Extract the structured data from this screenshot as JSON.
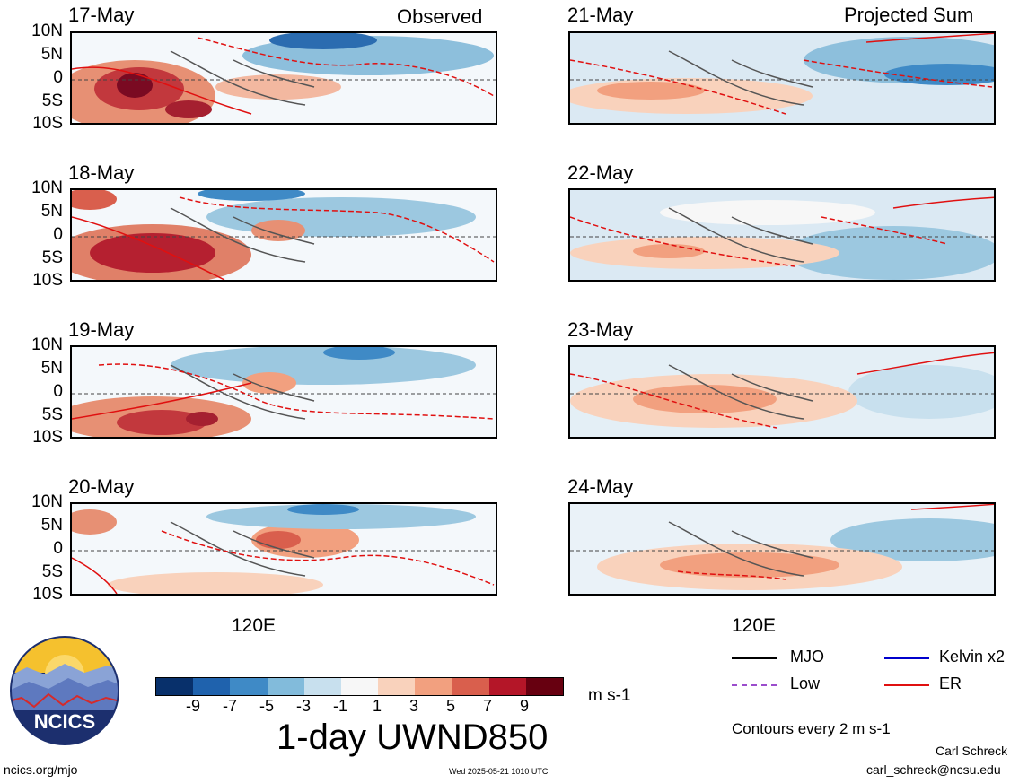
{
  "header": {
    "observed_title": "Observed",
    "projected_title": "Projected Sum"
  },
  "panels_left": [
    {
      "date": "17-May"
    },
    {
      "date": "18-May"
    },
    {
      "date": "19-May"
    },
    {
      "date": "20-May"
    }
  ],
  "panels_right": [
    {
      "date": "21-May"
    },
    {
      "date": "22-May"
    },
    {
      "date": "23-May"
    },
    {
      "date": "24-May"
    }
  ],
  "lat_labels": [
    "10N",
    "5N",
    "0",
    "5S",
    "10S"
  ],
  "lon_label": "120E",
  "colorbar": {
    "labels": [
      "-9",
      "-7",
      "-5",
      "-3",
      "-1",
      "1",
      "3",
      "5",
      "7",
      "9"
    ],
    "colors": [
      "#08306b",
      "#1f62ad",
      "#3f8ac6",
      "#82bbdb",
      "#c8e0ee",
      "#f7f7f7",
      "#f9d2bc",
      "#f2a07f",
      "#d95f4d",
      "#b41628",
      "#670010"
    ],
    "units": "m s-1",
    "title": "1-day UWND850"
  },
  "legend": {
    "mjo": "MJO",
    "kelvin": "Kelvin x2",
    "low": "Low",
    "er": "ER",
    "mjo_color": "#000000",
    "kelvin_color": "#0000cc",
    "low_color": "#9b4dcc",
    "er_color": "#e01010",
    "contours": "Contours every 2 m s-1"
  },
  "footer": {
    "logo_text": "NCICS",
    "url": "ncics.org/mjo",
    "timestamp": "Wed 2025-05-21 1010 UTC",
    "author": "Carl Schreck",
    "email": "carl_schreck@ncsu.edu"
  }
}
